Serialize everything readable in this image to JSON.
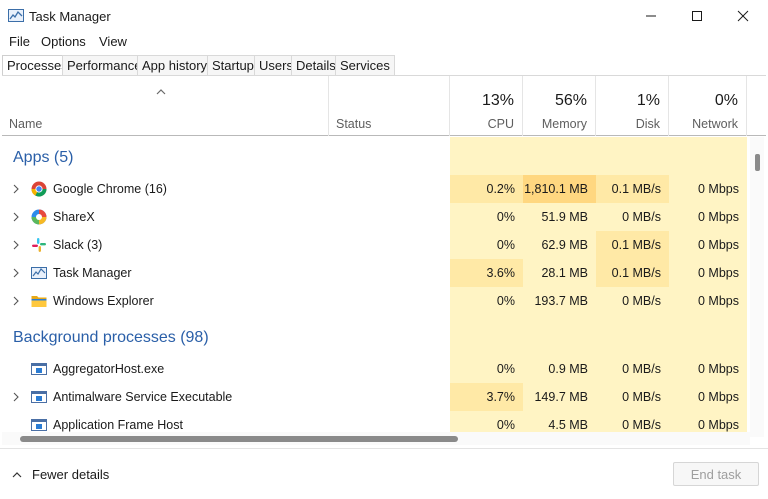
{
  "window": {
    "title": "Task Manager"
  },
  "menu": [
    "File",
    "Options",
    "View"
  ],
  "tabs": [
    "Processes",
    "Performance",
    "App history",
    "Startup",
    "Users",
    "Details",
    "Services"
  ],
  "active_tab": "Processes",
  "columns": {
    "name": "Name",
    "status": "Status",
    "cpu": {
      "pct": "13%",
      "label": "CPU"
    },
    "memory": {
      "pct": "56%",
      "label": "Memory"
    },
    "disk": {
      "pct": "1%",
      "label": "Disk"
    },
    "network": {
      "pct": "0%",
      "label": "Network"
    }
  },
  "groups": {
    "apps": "Apps (5)",
    "background": "Background processes (98)"
  },
  "apps": [
    {
      "name": "Google Chrome (16)",
      "icon": "chrome-icon",
      "cpu": "0.2%",
      "memory": "1,810.1 MB",
      "disk": "0.1 MB/s",
      "network": "0 Mbps"
    },
    {
      "name": "ShareX",
      "icon": "sharex-icon",
      "cpu": "0%",
      "memory": "51.9 MB",
      "disk": "0 MB/s",
      "network": "0 Mbps"
    },
    {
      "name": "Slack (3)",
      "icon": "slack-icon",
      "cpu": "0%",
      "memory": "62.9 MB",
      "disk": "0.1 MB/s",
      "network": "0 Mbps"
    },
    {
      "name": "Task Manager",
      "icon": "task-manager-icon",
      "cpu": "3.6%",
      "memory": "28.1 MB",
      "disk": "0.1 MB/s",
      "network": "0 Mbps"
    },
    {
      "name": "Windows Explorer",
      "icon": "folder-icon",
      "cpu": "0%",
      "memory": "193.7 MB",
      "disk": "0 MB/s",
      "network": "0 Mbps"
    }
  ],
  "background": [
    {
      "name": "AggregatorHost.exe",
      "icon": "process-icon",
      "cpu": "0%",
      "memory": "0.9 MB",
      "disk": "0 MB/s",
      "network": "0 Mbps"
    },
    {
      "name": "Antimalware Service Executable",
      "icon": "process-icon",
      "cpu": "3.7%",
      "memory": "149.7 MB",
      "disk": "0 MB/s",
      "network": "0 Mbps"
    },
    {
      "name": "Application Frame Host",
      "icon": "process-icon",
      "cpu": "0%",
      "memory": "4.5 MB",
      "disk": "0 MB/s",
      "network": "0 Mbps"
    }
  ],
  "footer": {
    "fewer_details": "Fewer details",
    "end_task": "End task"
  },
  "colors": {
    "heat_light": "#fff4c4",
    "heat_mid": "#ffe9a6",
    "heat_high": "#ffd780",
    "group_title": "#2a5fa8"
  }
}
